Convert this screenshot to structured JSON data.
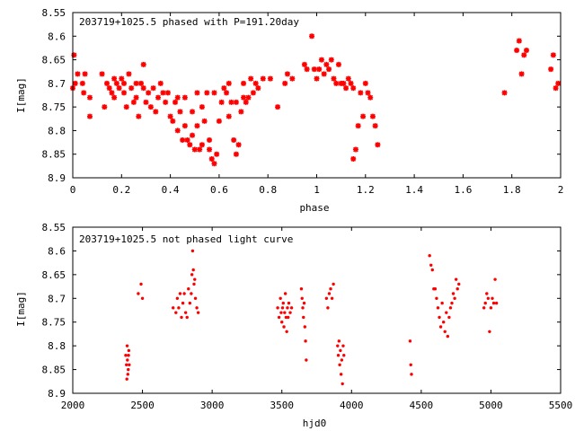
{
  "chart_data": [
    {
      "type": "scatter",
      "title": "203719+1025.5 phased with P=191.20day",
      "xlabel": "phase",
      "ylabel": "I[mag]",
      "xlim": [
        0,
        2
      ],
      "ylim": [
        8.55,
        8.9
      ],
      "y_inverted": true,
      "x_ticks": [
        0,
        0.2,
        0.4,
        0.6,
        0.8,
        1,
        1.2,
        1.4,
        1.6,
        1.8,
        2
      ],
      "y_ticks": [
        8.55,
        8.6,
        8.65,
        8.7,
        8.75,
        8.8,
        8.85,
        8.9
      ],
      "marker": "asterisk",
      "color": "#ff0000",
      "points": [
        [
          0.0,
          8.71
        ],
        [
          0.005,
          8.64
        ],
        [
          0.01,
          8.7
        ],
        [
          0.02,
          8.68
        ],
        [
          0.04,
          8.7
        ],
        [
          0.045,
          8.72
        ],
        [
          0.05,
          8.68
        ],
        [
          0.07,
          8.77
        ],
        [
          0.07,
          8.73
        ],
        [
          0.12,
          8.68
        ],
        [
          0.13,
          8.75
        ],
        [
          0.14,
          8.7
        ],
        [
          0.15,
          8.71
        ],
        [
          0.16,
          8.72
        ],
        [
          0.17,
          8.69
        ],
        [
          0.17,
          8.73
        ],
        [
          0.18,
          8.7
        ],
        [
          0.19,
          8.71
        ],
        [
          0.2,
          8.69
        ],
        [
          0.21,
          8.7
        ],
        [
          0.21,
          8.72
        ],
        [
          0.22,
          8.75
        ],
        [
          0.23,
          8.68
        ],
        [
          0.24,
          8.71
        ],
        [
          0.25,
          8.74
        ],
        [
          0.26,
          8.73
        ],
        [
          0.26,
          8.7
        ],
        [
          0.27,
          8.77
        ],
        [
          0.28,
          8.7
        ],
        [
          0.29,
          8.66
        ],
        [
          0.29,
          8.71
        ],
        [
          0.3,
          8.74
        ],
        [
          0.31,
          8.72
        ],
        [
          0.32,
          8.75
        ],
        [
          0.33,
          8.71
        ],
        [
          0.34,
          8.76
        ],
        [
          0.35,
          8.73
        ],
        [
          0.36,
          8.7
        ],
        [
          0.37,
          8.72
        ],
        [
          0.38,
          8.74
        ],
        [
          0.39,
          8.72
        ],
        [
          0.4,
          8.77
        ],
        [
          0.41,
          8.78
        ],
        [
          0.42,
          8.74
        ],
        [
          0.43,
          8.8
        ],
        [
          0.43,
          8.73
        ],
        [
          0.44,
          8.76
        ],
        [
          0.45,
          8.82
        ],
        [
          0.46,
          8.79
        ],
        [
          0.46,
          8.73
        ],
        [
          0.47,
          8.82
        ],
        [
          0.48,
          8.83
        ],
        [
          0.49,
          8.81
        ],
        [
          0.49,
          8.76
        ],
        [
          0.5,
          8.84
        ],
        [
          0.51,
          8.79
        ],
        [
          0.51,
          8.72
        ],
        [
          0.52,
          8.84
        ],
        [
          0.53,
          8.75
        ],
        [
          0.53,
          8.83
        ],
        [
          0.54,
          8.78
        ],
        [
          0.55,
          8.72
        ],
        [
          0.56,
          8.84
        ],
        [
          0.56,
          8.82
        ],
        [
          0.57,
          8.86
        ],
        [
          0.58,
          8.72
        ],
        [
          0.58,
          8.87
        ],
        [
          0.59,
          8.85
        ],
        [
          0.6,
          8.78
        ],
        [
          0.61,
          8.74
        ],
        [
          0.62,
          8.71
        ],
        [
          0.63,
          8.72
        ],
        [
          0.64,
          8.77
        ],
        [
          0.64,
          8.7
        ],
        [
          0.65,
          8.74
        ],
        [
          0.66,
          8.82
        ],
        [
          0.67,
          8.74
        ],
        [
          0.67,
          8.85
        ],
        [
          0.68,
          8.83
        ],
        [
          0.69,
          8.76
        ],
        [
          0.7,
          8.73
        ],
        [
          0.7,
          8.7
        ],
        [
          0.71,
          8.74
        ],
        [
          0.72,
          8.73
        ],
        [
          0.73,
          8.69
        ],
        [
          0.74,
          8.72
        ],
        [
          0.75,
          8.7
        ],
        [
          0.76,
          8.71
        ],
        [
          0.78,
          8.69
        ],
        [
          0.81,
          8.69
        ],
        [
          0.84,
          8.75
        ],
        [
          0.87,
          8.7
        ],
        [
          0.88,
          8.68
        ],
        [
          0.9,
          8.69
        ],
        [
          0.95,
          8.66
        ],
        [
          0.96,
          8.67
        ],
        [
          0.98,
          8.6
        ],
        [
          0.99,
          8.67
        ],
        [
          1.0,
          8.69
        ],
        [
          1.01,
          8.67
        ],
        [
          1.02,
          8.65
        ],
        [
          1.03,
          8.68
        ],
        [
          1.04,
          8.66
        ],
        [
          1.05,
          8.67
        ],
        [
          1.06,
          8.65
        ],
        [
          1.07,
          8.69
        ],
        [
          1.08,
          8.7
        ],
        [
          1.09,
          8.66
        ],
        [
          1.1,
          8.7
        ],
        [
          1.11,
          8.7
        ],
        [
          1.12,
          8.71
        ],
        [
          1.13,
          8.69
        ],
        [
          1.14,
          8.7
        ],
        [
          1.15,
          8.71
        ],
        [
          1.16,
          8.84
        ],
        [
          1.17,
          8.79
        ],
        [
          1.18,
          8.72
        ],
        [
          1.19,
          8.77
        ],
        [
          1.2,
          8.7
        ],
        [
          1.21,
          8.72
        ],
        [
          1.22,
          8.73
        ],
        [
          1.23,
          8.77
        ],
        [
          1.24,
          8.79
        ],
        [
          1.25,
          8.83
        ],
        [
          1.15,
          8.86
        ],
        [
          1.77,
          8.72
        ],
        [
          1.82,
          8.63
        ],
        [
          1.83,
          8.61
        ],
        [
          1.84,
          8.68
        ],
        [
          1.85,
          8.64
        ],
        [
          1.86,
          8.63
        ],
        [
          1.96,
          8.67
        ],
        [
          1.97,
          8.64
        ],
        [
          1.98,
          8.71
        ],
        [
          1.99,
          8.7
        ]
      ]
    },
    {
      "type": "scatter",
      "title": "203719+1025.5 not phased light curve",
      "xlabel": "hjd0",
      "ylabel": "I[mag]",
      "xlim": [
        2000,
        5500
      ],
      "ylim": [
        8.55,
        8.9
      ],
      "y_inverted": true,
      "x_ticks": [
        2000,
        2500,
        3000,
        3500,
        4000,
        4500,
        5000,
        5500
      ],
      "y_ticks": [
        8.55,
        8.6,
        8.65,
        8.7,
        8.75,
        8.8,
        8.85,
        8.9
      ],
      "marker": "dot",
      "color": "#ff0000",
      "points": [
        [
          2380,
          8.82
        ],
        [
          2385,
          8.84
        ],
        [
          2388,
          8.87
        ],
        [
          2390,
          8.8
        ],
        [
          2392,
          8.83
        ],
        [
          2395,
          8.86
        ],
        [
          2398,
          8.85
        ],
        [
          2400,
          8.82
        ],
        [
          2402,
          8.81
        ],
        [
          2405,
          8.84
        ],
        [
          2470,
          8.69
        ],
        [
          2490,
          8.67
        ],
        [
          2500,
          8.7
        ],
        [
          2720,
          8.72
        ],
        [
          2740,
          8.73
        ],
        [
          2750,
          8.7
        ],
        [
          2760,
          8.72
        ],
        [
          2770,
          8.69
        ],
        [
          2780,
          8.74
        ],
        [
          2790,
          8.71
        ],
        [
          2800,
          8.69
        ],
        [
          2810,
          8.73
        ],
        [
          2820,
          8.74
        ],
        [
          2830,
          8.68
        ],
        [
          2840,
          8.71
        ],
        [
          2850,
          8.69
        ],
        [
          2855,
          8.65
        ],
        [
          2860,
          8.6
        ],
        [
          2865,
          8.64
        ],
        [
          2870,
          8.67
        ],
        [
          2875,
          8.66
        ],
        [
          2880,
          8.7
        ],
        [
          2890,
          8.72
        ],
        [
          2900,
          8.73
        ],
        [
          3470,
          8.72
        ],
        [
          3480,
          8.74
        ],
        [
          3490,
          8.7
        ],
        [
          3495,
          8.73
        ],
        [
          3500,
          8.75
        ],
        [
          3505,
          8.72
        ],
        [
          3510,
          8.71
        ],
        [
          3515,
          8.76
        ],
        [
          3520,
          8.73
        ],
        [
          3525,
          8.69
        ],
        [
          3530,
          8.74
        ],
        [
          3535,
          8.77
        ],
        [
          3540,
          8.72
        ],
        [
          3545,
          8.74
        ],
        [
          3550,
          8.71
        ],
        [
          3560,
          8.73
        ],
        [
          3570,
          8.72
        ],
        [
          3640,
          8.68
        ],
        [
          3645,
          8.7
        ],
        [
          3650,
          8.72
        ],
        [
          3655,
          8.74
        ],
        [
          3660,
          8.71
        ],
        [
          3665,
          8.76
        ],
        [
          3670,
          8.79
        ],
        [
          3675,
          8.83
        ],
        [
          3820,
          8.7
        ],
        [
          3830,
          8.72
        ],
        [
          3840,
          8.69
        ],
        [
          3850,
          8.68
        ],
        [
          3860,
          8.7
        ],
        [
          3870,
          8.67
        ],
        [
          3900,
          8.8
        ],
        [
          3905,
          8.82
        ],
        [
          3910,
          8.79
        ],
        [
          3915,
          8.84
        ],
        [
          3920,
          8.81
        ],
        [
          3925,
          8.86
        ],
        [
          3930,
          8.83
        ],
        [
          3935,
          8.88
        ],
        [
          3940,
          8.8
        ],
        [
          3945,
          8.82
        ],
        [
          4420,
          8.79
        ],
        [
          4425,
          8.84
        ],
        [
          4430,
          8.86
        ],
        [
          4560,
          8.61
        ],
        [
          4570,
          8.63
        ],
        [
          4580,
          8.64
        ],
        [
          4590,
          8.68
        ],
        [
          4600,
          8.68
        ],
        [
          4610,
          8.7
        ],
        [
          4620,
          8.72
        ],
        [
          4630,
          8.74
        ],
        [
          4640,
          8.76
        ],
        [
          4650,
          8.71
        ],
        [
          4660,
          8.75
        ],
        [
          4670,
          8.77
        ],
        [
          4680,
          8.73
        ],
        [
          4690,
          8.78
        ],
        [
          4700,
          8.74
        ],
        [
          4710,
          8.72
        ],
        [
          4720,
          8.71
        ],
        [
          4730,
          8.69
        ],
        [
          4740,
          8.7
        ],
        [
          4750,
          8.66
        ],
        [
          4760,
          8.68
        ],
        [
          4770,
          8.67
        ],
        [
          4950,
          8.72
        ],
        [
          4960,
          8.71
        ],
        [
          4970,
          8.69
        ],
        [
          4980,
          8.7
        ],
        [
          4990,
          8.77
        ],
        [
          5000,
          8.72
        ],
        [
          5010,
          8.7
        ],
        [
          5020,
          8.71
        ],
        [
          5030,
          8.66
        ],
        [
          5040,
          8.71
        ]
      ]
    }
  ]
}
